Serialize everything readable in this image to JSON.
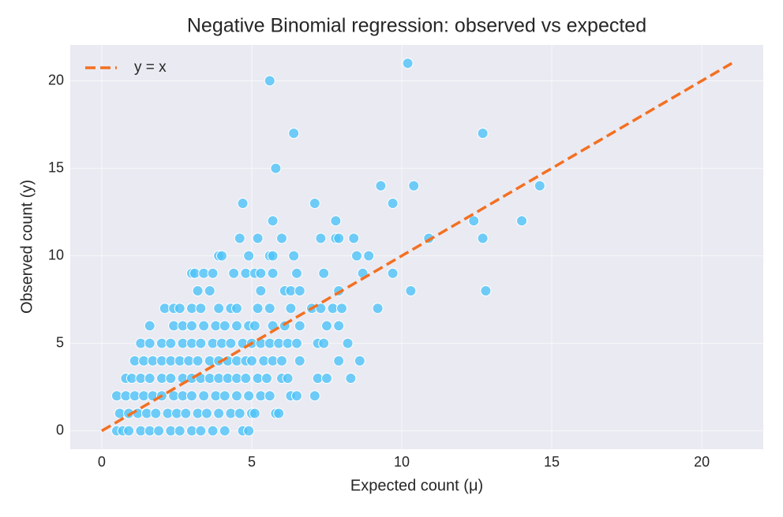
{
  "chart_data": {
    "type": "scatter",
    "title": "Negative Binomial regression: observed vs expected",
    "x_label": "Expected count (μ)",
    "y_label": "Observed count (y)",
    "xlim": [
      -1.05,
      22.05
    ],
    "ylim": [
      -1.05,
      22.05
    ],
    "xticks": [
      0,
      5,
      10,
      15,
      20
    ],
    "yticks": [
      0,
      5,
      10,
      15,
      20
    ],
    "grid": true,
    "legend": "upper left",
    "background": "#eaeaf2",
    "series": [
      {
        "type": "scatter",
        "color": "#4fc3f7",
        "x": [
          0.5,
          0.7,
          0.9,
          1.3,
          1.6,
          1.9,
          2.3,
          2.6,
          3.0,
          3.3,
          3.7,
          4.1,
          4.7,
          4.9,
          0.6,
          0.9,
          1.2,
          1.5,
          1.8,
          2.2,
          2.5,
          2.8,
          3.2,
          3.5,
          3.9,
          4.3,
          4.6,
          5.0,
          5.1,
          5.8,
          5.9,
          0.5,
          0.8,
          1.1,
          1.4,
          1.7,
          2.0,
          2.4,
          2.7,
          3.0,
          3.4,
          3.8,
          4.1,
          4.5,
          4.9,
          5.3,
          5.6,
          6.3,
          6.5,
          7.1,
          0.8,
          1.0,
          1.3,
          1.6,
          2.0,
          2.3,
          2.7,
          3.0,
          3.3,
          3.6,
          3.9,
          4.2,
          4.5,
          4.8,
          5.2,
          5.5,
          6.0,
          6.2,
          7.2,
          7.5,
          8.3,
          1.1,
          1.4,
          1.7,
          2.0,
          2.3,
          2.6,
          2.9,
          3.2,
          3.6,
          3.9,
          4.2,
          4.5,
          4.8,
          5.0,
          5.4,
          5.7,
          6.0,
          6.6,
          7.9,
          8.6,
          1.3,
          1.6,
          2.0,
          2.3,
          2.7,
          3.0,
          3.3,
          3.7,
          4.0,
          4.3,
          4.7,
          5.0,
          5.3,
          5.6,
          5.9,
          6.2,
          6.5,
          7.2,
          7.4,
          8.2,
          1.6,
          2.4,
          2.7,
          3.0,
          3.4,
          3.8,
          4.1,
          4.5,
          4.9,
          5.1,
          5.7,
          6.1,
          6.6,
          7.5,
          7.9,
          2.1,
          2.4,
          2.6,
          3.0,
          3.3,
          3.9,
          4.3,
          4.5,
          5.2,
          5.6,
          6.3,
          7.0,
          7.3,
          7.7,
          8.0,
          9.2,
          3.2,
          3.6,
          5.3,
          6.1,
          6.3,
          6.6,
          7.9,
          10.3,
          12.8,
          3.0,
          3.1,
          3.4,
          3.7,
          4.4,
          4.8,
          5.1,
          5.3,
          5.7,
          6.5,
          7.4,
          8.7,
          9.7,
          3.9,
          4.0,
          4.9,
          5.6,
          5.7,
          6.4,
          8.5,
          8.9,
          4.6,
          5.2,
          6.0,
          7.3,
          7.8,
          7.9,
          8.4,
          10.9,
          12.7,
          5.7,
          7.8,
          12.4,
          14.0,
          4.7,
          7.1,
          9.7,
          9.3,
          10.4,
          14.6,
          5.8,
          6.4,
          12.7,
          5.6,
          10.2
        ],
        "values": [
          0,
          0,
          0,
          0,
          0,
          0,
          0,
          0,
          0,
          0,
          0,
          0,
          0,
          0,
          1,
          1,
          1,
          1,
          1,
          1,
          1,
          1,
          1,
          1,
          1,
          1,
          1,
          1,
          1,
          1,
          1,
          2,
          2,
          2,
          2,
          2,
          2,
          2,
          2,
          2,
          2,
          2,
          2,
          2,
          2,
          2,
          2,
          2,
          2,
          2,
          3,
          3,
          3,
          3,
          3,
          3,
          3,
          3,
          3,
          3,
          3,
          3,
          3,
          3,
          3,
          3,
          3,
          3,
          3,
          3,
          3,
          4,
          4,
          4,
          4,
          4,
          4,
          4,
          4,
          4,
          4,
          4,
          4,
          4,
          4,
          4,
          4,
          4,
          4,
          4,
          4,
          5,
          5,
          5,
          5,
          5,
          5,
          5,
          5,
          5,
          5,
          5,
          5,
          5,
          5,
          5,
          5,
          5,
          5,
          5,
          5,
          6,
          6,
          6,
          6,
          6,
          6,
          6,
          6,
          6,
          6,
          6,
          6,
          6,
          6,
          6,
          7,
          7,
          7,
          7,
          7,
          7,
          7,
          7,
          7,
          7,
          7,
          7,
          7,
          7,
          7,
          7,
          8,
          8,
          8,
          8,
          8,
          8,
          8,
          8,
          8,
          9,
          9,
          9,
          9,
          9,
          9,
          9,
          9,
          9,
          9,
          9,
          9,
          9,
          10,
          10,
          10,
          10,
          10,
          10,
          10,
          10,
          11,
          11,
          11,
          11,
          11,
          11,
          11,
          11,
          11,
          12,
          12,
          12,
          12,
          13,
          13,
          13,
          14,
          14,
          14,
          15,
          17,
          17,
          20,
          21
        ]
      },
      {
        "type": "line",
        "name": "y = x",
        "color": "#f37021",
        "dashed": true,
        "x": [
          0,
          21
        ],
        "values": [
          0,
          21
        ]
      }
    ]
  }
}
